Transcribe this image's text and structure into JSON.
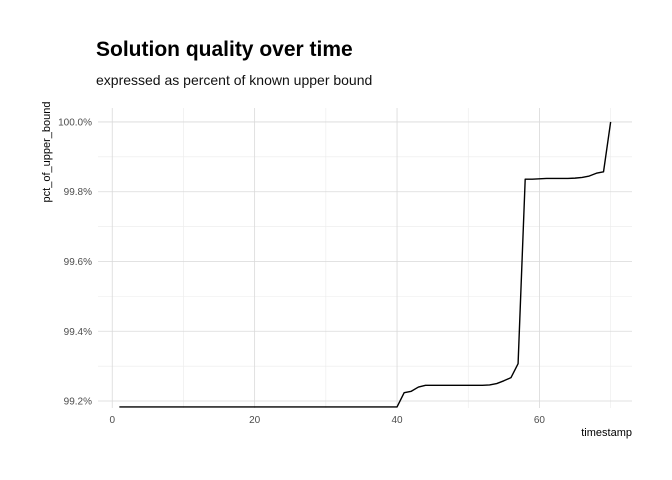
{
  "chart_data": {
    "type": "line",
    "title": "Solution quality over time",
    "subtitle": "expressed as percent of known upper bound",
    "xlabel": "timestamp",
    "ylabel": "pct_of_upper_bound",
    "xlim": [
      -2,
      73
    ],
    "ylim": [
      99.18,
      100.04
    ],
    "x_ticks": [
      0,
      20,
      40,
      60
    ],
    "x_tick_labels": [
      "0",
      "20",
      "40",
      "60"
    ],
    "x_minor_ticks": [
      10,
      30,
      50,
      70
    ],
    "y_ticks": [
      99.2,
      99.4,
      99.6,
      99.8,
      100.0
    ],
    "y_tick_labels": [
      "99.2%",
      "99.4%",
      "99.6%",
      "99.8%",
      "100.0%"
    ],
    "y_minor_ticks": [
      99.3,
      99.5,
      99.7,
      99.9
    ],
    "grid": true,
    "legend": "none",
    "colors": {
      "line": "#000000",
      "grid_major": "#d9d9d9",
      "grid_minor": "#ebebeb",
      "background": "#ffffff"
    },
    "series": [
      {
        "x": [
          1,
          40,
          41,
          42,
          43,
          44,
          45,
          46,
          47,
          48,
          49,
          50,
          51,
          52,
          53,
          54,
          55,
          56,
          57,
          58,
          59,
          60,
          61,
          62,
          63,
          64,
          65,
          66,
          67,
          68,
          69,
          70
        ],
        "y": [
          99.183,
          99.183,
          99.224,
          99.228,
          99.24,
          99.245,
          99.245,
          99.245,
          99.245,
          99.245,
          99.245,
          99.245,
          99.245,
          99.245,
          99.246,
          99.25,
          99.258,
          99.267,
          99.307,
          99.836,
          99.836,
          99.837,
          99.838,
          99.838,
          99.838,
          99.838,
          99.839,
          99.841,
          99.845,
          99.853,
          99.857,
          100.0
        ]
      }
    ]
  }
}
